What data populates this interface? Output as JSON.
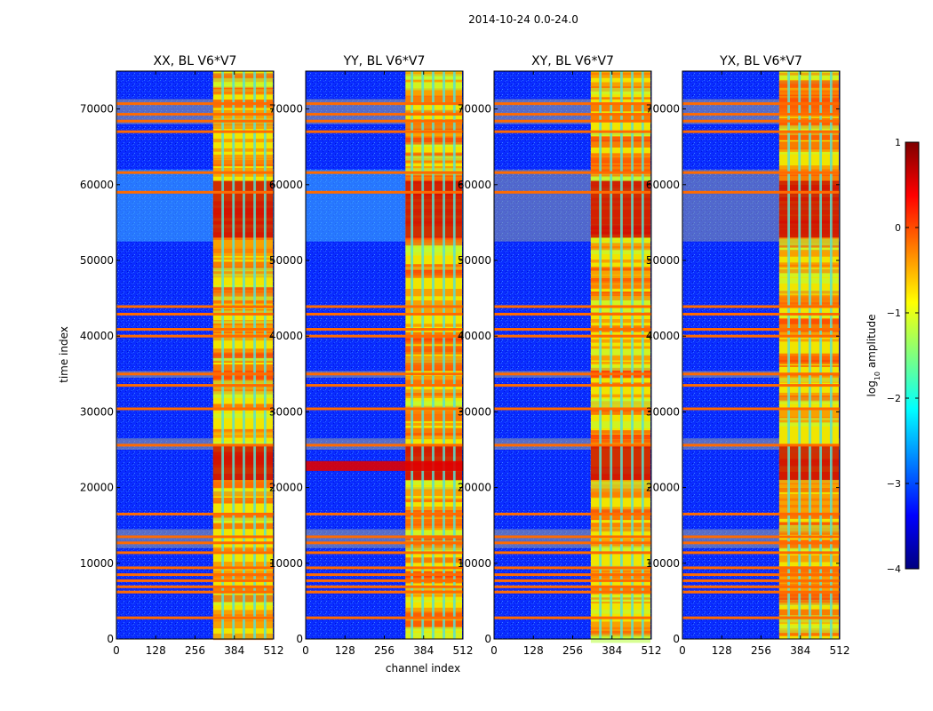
{
  "figure_title": "2014-10-24 0.0-24.0",
  "colors": {
    "background": "#0000ff",
    "strong_band": "#ff6a00",
    "gray_band": "#8c9aa6",
    "colorbar_ramp": [
      "#00007f",
      "#0000ff",
      "#007fff",
      "#00ffff",
      "#7fff7f",
      "#ffff00",
      "#ff7f00",
      "#ff0000",
      "#7f0000"
    ]
  },
  "chart_data": {
    "type": "heatmap",
    "shared": {
      "xlabel": "channel index",
      "ylabel": "time index",
      "xlim": [
        0,
        512
      ],
      "ylim": [
        0,
        75000
      ],
      "xticks": [
        0,
        128,
        256,
        384,
        512
      ],
      "yticks": [
        0,
        10000,
        20000,
        30000,
        40000,
        50000,
        60000,
        70000
      ],
      "colorbar": {
        "label": "log$_{10}$ amplitude",
        "range": [
          -4,
          1
        ],
        "ticks": [
          1,
          0,
          -1,
          -2,
          -3,
          -4
        ],
        "tick_labels": [
          "1",
          "0",
          "−1",
          "−2",
          "−3",
          "−4"
        ]
      },
      "signal_channel_range": [
        325,
        512
      ],
      "signal_gap_channel_ranges": [
        [
          342,
          350
        ],
        [
          377,
          385
        ],
        [
          411,
          419
        ],
        [
          446,
          454
        ],
        [
          480,
          488
        ]
      ],
      "bright_time_ranges": [
        [
          21000,
          25500
        ],
        [
          53000,
          60500
        ]
      ],
      "horizontal_band_times": [
        2800,
        6200,
        6900,
        7700,
        8500,
        9400,
        11400,
        12700,
        13500,
        16500,
        25600,
        30400,
        33500,
        35000,
        40000,
        40900,
        42900,
        43900,
        59000,
        61600,
        67000,
        68400,
        69300,
        70700
      ],
      "gray_band_time_ranges": [
        [
          12000,
          14500
        ],
        [
          25000,
          26500
        ],
        [
          34500,
          35400
        ],
        [
          52500,
          62000
        ],
        [
          68000,
          71300
        ]
      ]
    },
    "panels": [
      {
        "title": "XX, BL V6*V7"
      },
      {
        "title": "YY, BL V6*V7"
      },
      {
        "title": "XY, BL V6*V7"
      },
      {
        "title": "YX, BL V6*V7"
      }
    ]
  }
}
